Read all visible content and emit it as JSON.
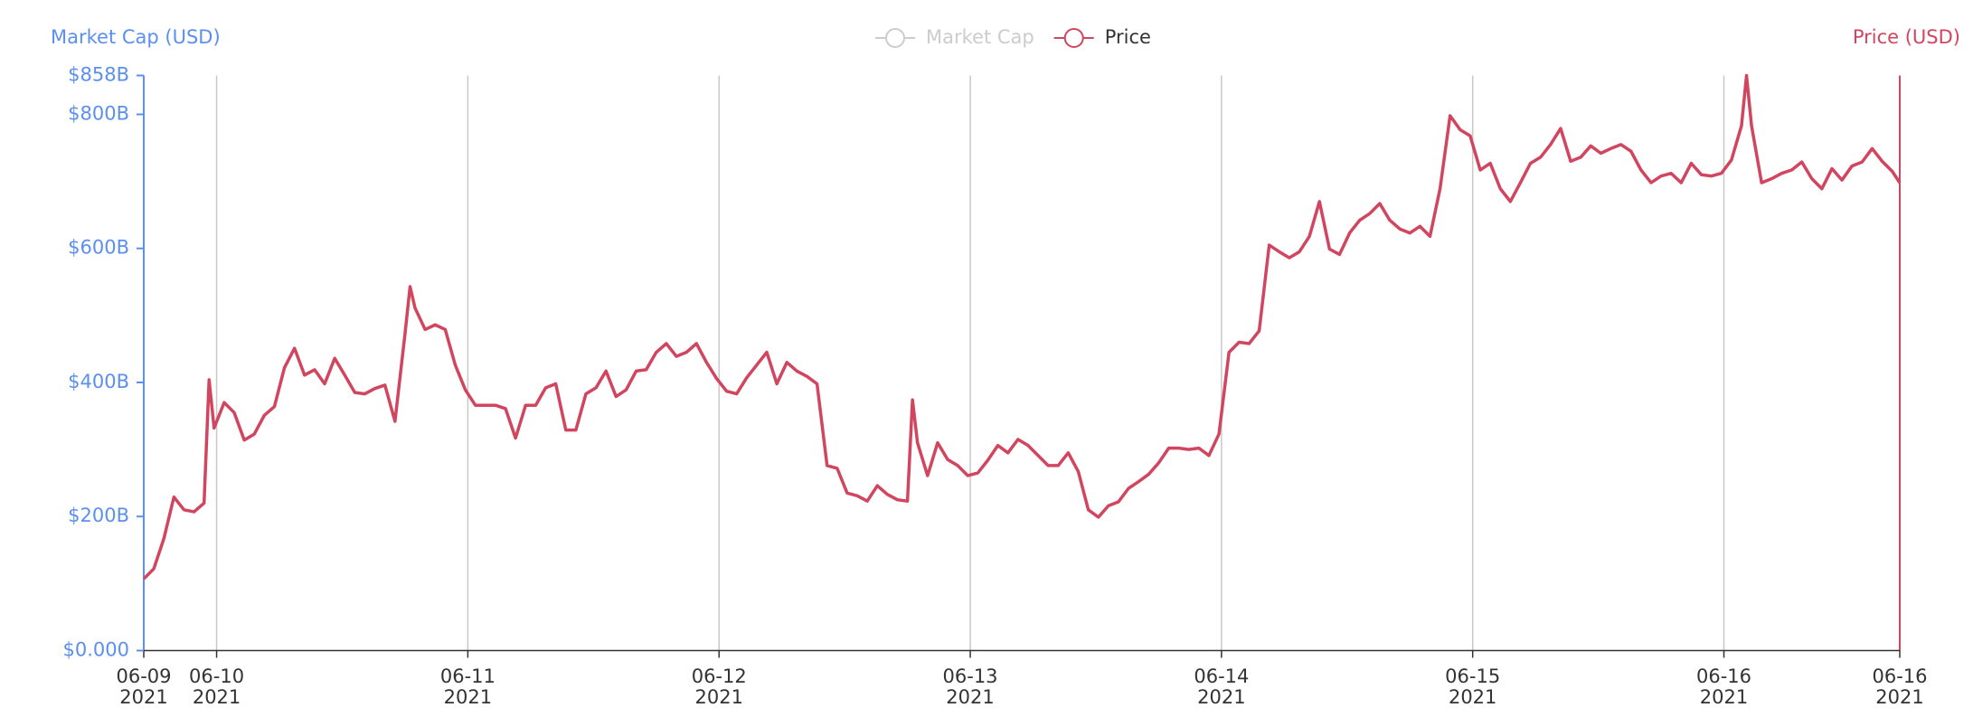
{
  "chart_data": {
    "type": "line",
    "y_label": "Market Cap (USD)",
    "y2_label": "Price (USD)",
    "y_color": "#5b8ff0",
    "y2_color": "#d2455f",
    "x": [
      9.71,
      9.75,
      9.79,
      9.83,
      9.87,
      9.91,
      9.95,
      9.97,
      9.99,
      10.03,
      10.07,
      10.11,
      10.15,
      10.19,
      10.23,
      10.27,
      10.31,
      10.35,
      10.39,
      10.43,
      10.47,
      10.51,
      10.55,
      10.59,
      10.63,
      10.67,
      10.71,
      10.75,
      10.77,
      10.79,
      10.83,
      10.87,
      10.91,
      10.95,
      10.99,
      11.03,
      11.07,
      11.11,
      11.15,
      11.19,
      11.23,
      11.27,
      11.31,
      11.35,
      11.39,
      11.43,
      11.47,
      11.51,
      11.55,
      11.59,
      11.63,
      11.67,
      11.71,
      11.75,
      11.79,
      11.83,
      11.87,
      11.91,
      11.95,
      11.99,
      12.03,
      12.07,
      12.11,
      12.15,
      12.19,
      12.23,
      12.27,
      12.31,
      12.35,
      12.39,
      12.43,
      12.47,
      12.51,
      12.55,
      12.59,
      12.63,
      12.67,
      12.71,
      12.75,
      12.77,
      12.79,
      12.83,
      12.87,
      12.91,
      12.95,
      12.99,
      13.03,
      13.07,
      13.11,
      13.15,
      13.19,
      13.23,
      13.27,
      13.31,
      13.35,
      13.39,
      13.43,
      13.47,
      13.51,
      13.55,
      13.59,
      13.63,
      13.67,
      13.71,
      13.75,
      13.79,
      13.83,
      13.87,
      13.91,
      13.95,
      13.99,
      14.03,
      14.07,
      14.11,
      14.15,
      14.19,
      14.23,
      14.27,
      14.31,
      14.35,
      14.39,
      14.43,
      14.47,
      14.51,
      14.55,
      14.59,
      14.63,
      14.67,
      14.71,
      14.75,
      14.79,
      14.83,
      14.87,
      14.91,
      14.95,
      14.99,
      15.03,
      15.07,
      15.11,
      15.15,
      15.19,
      15.23,
      15.27,
      15.31,
      15.35,
      15.39,
      15.43,
      15.47,
      15.51,
      15.55,
      15.59,
      15.63,
      15.67,
      15.71,
      15.75,
      15.79,
      15.83,
      15.87,
      15.91,
      15.95,
      15.99,
      16.03,
      16.07,
      16.09,
      16.11,
      16.15,
      16.19,
      16.23,
      16.27,
      16.31,
      16.35,
      16.39,
      16.43,
      16.47,
      16.51,
      16.55,
      16.59,
      16.63,
      16.67,
      16.7
    ],
    "series": [
      {
        "name": "Market Cap",
        "color": "#cccccc",
        "hidden": true
      },
      {
        "name": "Price",
        "color": "#d2455f",
        "values": [
          107,
          122,
          167,
          229,
          210,
          207,
          220,
          404,
          332,
          370,
          355,
          314,
          323,
          351,
          364,
          422,
          451,
          411,
          419,
          398,
          436,
          411,
          385,
          383,
          391,
          396,
          342,
          473,
          543,
          511,
          479,
          486,
          479,
          426,
          389,
          366,
          366,
          366,
          361,
          317,
          366,
          366,
          392,
          398,
          329,
          329,
          383,
          392,
          417,
          379,
          389,
          417,
          419,
          445,
          458,
          439,
          445,
          458,
          430,
          406,
          387,
          383,
          407,
          426,
          445,
          398,
          430,
          417,
          409,
          398,
          276,
          272,
          235,
          231,
          223,
          246,
          233,
          225,
          223,
          374,
          310,
          261,
          310,
          285,
          276,
          261,
          265,
          284,
          306,
          295,
          315,
          306,
          291,
          276,
          276,
          295,
          267,
          210,
          199,
          216,
          222,
          242,
          252,
          263,
          280,
          302,
          302,
          300,
          302,
          291,
          323,
          445,
          460,
          458,
          477,
          605,
          595,
          586,
          595,
          618,
          670,
          599,
          591,
          623,
          642,
          652,
          667,
          642,
          629,
          623,
          633,
          618,
          689,
          798,
          777,
          768,
          717,
          727,
          689,
          670,
          698,
          727,
          736,
          755,
          779,
          730,
          736,
          753,
          742,
          749,
          755,
          745,
          717,
          698,
          708,
          712,
          698,
          727,
          710,
          708,
          712,
          732,
          783,
          858,
          783,
          698,
          704,
          712,
          717,
          729,
          704,
          689,
          719,
          702,
          723,
          729,
          749,
          730,
          715,
          698
        ]
      }
    ],
    "xlim": [
      9.71,
      16.7
    ],
    "xticks": [
      {
        "value": 9.71,
        "label": "06-09\n2021"
      },
      {
        "value": 10,
        "label": "06-10\n2021"
      },
      {
        "value": 11,
        "label": "06-11\n2021"
      },
      {
        "value": 12,
        "label": "06-12\n2021"
      },
      {
        "value": 13,
        "label": "06-13\n2021"
      },
      {
        "value": 14,
        "label": "06-14\n2021"
      },
      {
        "value": 15,
        "label": "06-15\n2021"
      },
      {
        "value": 16,
        "label": "06-16\n2021"
      },
      {
        "value": 16.7,
        "label": "06-16\n2021"
      }
    ],
    "ylim": [
      0,
      858
    ],
    "yticks": [
      {
        "value": 0,
        "label": "$0.000"
      },
      {
        "value": 200,
        "label": "$200B"
      },
      {
        "value": 400,
        "label": "$400B"
      },
      {
        "value": 600,
        "label": "$600B"
      },
      {
        "value": 800,
        "label": "$800B"
      },
      {
        "value": 858,
        "label": "$858B"
      }
    ],
    "grid": "x"
  }
}
